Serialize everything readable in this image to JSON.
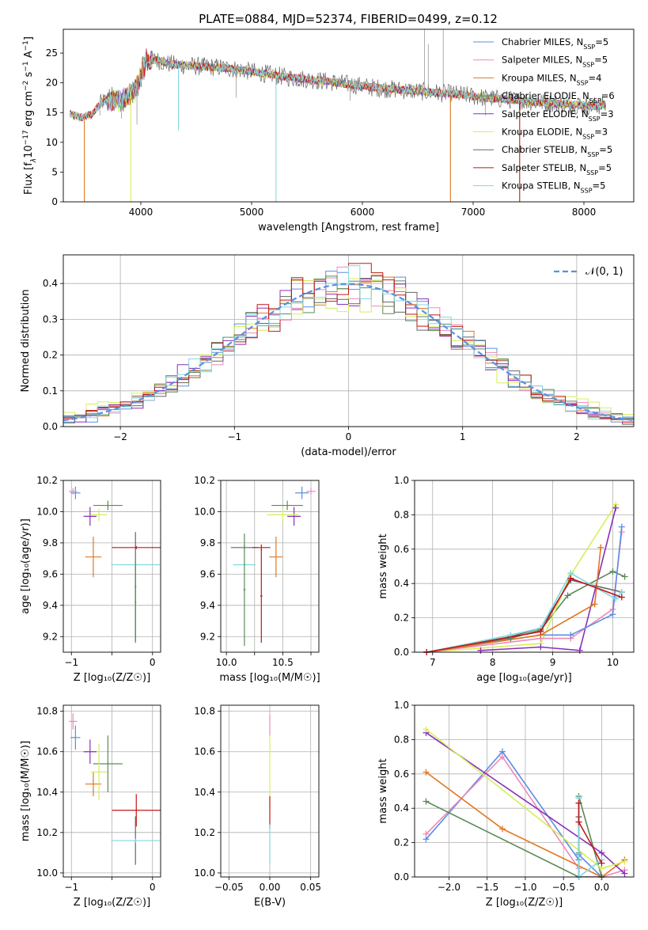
{
  "figure": {
    "title": "PLATE=0884, MJD=52374, FIBERID=0499, z=0.12"
  },
  "colors": {
    "chabrier_miles": "#5b8fe0",
    "salpeter_miles": "#ee88bb",
    "kroupa_miles": "#e07820",
    "chabrier_elodie": "#5a8a5a",
    "salpeter_elodie": "#8b2fb8",
    "kroupa_elodie": "#d4ef5a",
    "chabrier_stelib": "#666666",
    "salpeter_stelib": "#c01818",
    "kroupa_stelib": "#80d8e0"
  },
  "chart_data": [
    {
      "id": "spectrum",
      "type": "line",
      "title": "PLATE=0884, MJD=52374, FIBERID=0499, z=0.12",
      "xlabel": "wavelength [Angstrom, rest frame]",
      "ylabel_parts": [
        "Flux [f",
        "λ",
        "10",
        "−17",
        " erg cm",
        "−2",
        " s",
        "−1",
        " A",
        "−1",
        "]"
      ],
      "xlim": [
        3300,
        8450
      ],
      "ylim": [
        0,
        29
      ],
      "xticks": [
        4000,
        5000,
        6000,
        7000,
        8000
      ],
      "yticks": [
        0,
        5,
        10,
        15,
        20,
        25
      ],
      "grid": false,
      "legend_position": "top-right",
      "legend": [
        {
          "base": "Chabrier MILES, N",
          "sub": "SSP",
          "tail": "=5",
          "color": "#5b8fe0"
        },
        {
          "base": "Salpeter MILES, N",
          "sub": "SSP",
          "tail": "=5",
          "color": "#ee88bb"
        },
        {
          "base": "Kroupa MILES, N",
          "sub": "SSP",
          "tail": "=4",
          "color": "#e07820"
        },
        {
          "base": "Chabrier ELODIE, N",
          "sub": "SSP",
          "tail": "=6",
          "color": "#5a8a5a"
        },
        {
          "base": "Salpeter ELODIE, N",
          "sub": "SSP",
          "tail": "=3",
          "color": "#8b2fb8"
        },
        {
          "base": "Kroupa ELODIE, N",
          "sub": "SSP",
          "tail": "=3",
          "color": "#d4ef5a"
        },
        {
          "base": "Chabrier STELIB, N",
          "sub": "SSP",
          "tail": "=5",
          "color": "#666666"
        },
        {
          "base": "Salpeter STELIB, N",
          "sub": "SSP",
          "tail": "=5",
          "color": "#c01818"
        },
        {
          "base": "Kroupa STELIB, N",
          "sub": "SSP",
          "tail": "=5",
          "color": "#80d8e0"
        }
      ],
      "continuum": {
        "x": [
          3350,
          3450,
          3550,
          3650,
          3750,
          3850,
          3950,
          4050,
          4150,
          4250,
          4350,
          4500,
          4700,
          4900,
          5100,
          5300,
          5500,
          5700,
          5900,
          6100,
          6300,
          6500,
          6700,
          6900,
          7100,
          7300,
          7500,
          7700,
          7900,
          8100,
          8200
        ],
        "y": [
          14.8,
          14.2,
          14.6,
          16.8,
          17.2,
          17.5,
          19.0,
          24.0,
          23.8,
          23.2,
          23.0,
          22.8,
          22.6,
          22.2,
          21.6,
          21.0,
          20.6,
          20.2,
          19.7,
          19.2,
          18.9,
          18.6,
          18.3,
          18.0,
          17.5,
          17.2,
          16.9,
          16.6,
          16.3,
          16.1,
          16.3
        ]
      },
      "dips": [
        {
          "x": 3490,
          "y": 0,
          "color": "#e07820"
        },
        {
          "x": 3910,
          "y": 0,
          "color": "#d4ef5a"
        },
        {
          "x": 4340,
          "y": 12,
          "color": "#80d8e0"
        },
        {
          "x": 5220,
          "y": 0,
          "color": "#80d8e0"
        },
        {
          "x": 6795,
          "y": 0,
          "color": "#e07820"
        },
        {
          "x": 7420,
          "y": 0,
          "color": "#c01818"
        }
      ],
      "spikes": [
        {
          "x": 3630,
          "y": 14.5
        },
        {
          "x": 3825,
          "y": 14.0
        },
        {
          "x": 3965,
          "y": 13.0
        },
        {
          "x": 4860,
          "y": 17.5
        },
        {
          "x": 5890,
          "y": 17.0
        },
        {
          "x": 6560,
          "y": 29.0
        },
        {
          "x": 6595,
          "y": 26.5
        },
        {
          "x": 6730,
          "y": 29.0
        },
        {
          "x": 7110,
          "y": 14.5
        }
      ]
    },
    {
      "id": "residuals",
      "type": "histogram",
      "xlabel": "(data-model)/error",
      "ylabel": "Normed distribution",
      "xlim": [
        -2.5,
        2.5
      ],
      "ylim": [
        0,
        0.48
      ],
      "xticks": [
        -2,
        -1,
        0,
        1,
        2
      ],
      "yticks": [
        0.0,
        0.1,
        0.2,
        0.3,
        0.4
      ],
      "grid": true,
      "legend_position": "top-right",
      "legend": [
        {
          "label": "𝒩(0, 1)",
          "color": "#5b8fe0"
        }
      ],
      "bin_width": 0.1
    },
    {
      "id": "age-vs-metallicity",
      "type": "errorbar",
      "xlabel": "Z [log₁₀(Z/Z☉)]",
      "ylabel": "age  [log₁₀(age/yr)]",
      "xlim": [
        -1.1,
        0.1
      ],
      "ylim": [
        9.1,
        10.2
      ],
      "xticks": [
        -1,
        -0.5,
        0
      ],
      "xticklabels": [
        "−1",
        "",
        "0"
      ],
      "yticks": [
        9.2,
        9.4,
        9.6,
        9.8,
        10.0,
        10.2
      ],
      "grid": true,
      "points": [
        {
          "x": -0.95,
          "xerr": 0.06,
          "y": 10.12,
          "yerr": 0.04,
          "color": "#5b8fe0"
        },
        {
          "x": -0.98,
          "xerr": 0.05,
          "y": 10.13,
          "yerr": 0.02,
          "color": "#ee88bb"
        },
        {
          "x": -0.73,
          "xerr": 0.1,
          "y": 9.71,
          "yerr": 0.13,
          "color": "#e07820"
        },
        {
          "x": -0.55,
          "xerr": 0.18,
          "y": 10.04,
          "yerr": 0.03,
          "color": "#5a8a5a"
        },
        {
          "x": -0.77,
          "xerr": 0.08,
          "y": 9.97,
          "yerr": 0.06,
          "color": "#8b2fb8"
        },
        {
          "x": -0.66,
          "xerr": 0.1,
          "y": 9.98,
          "yerr": 0.04,
          "color": "#d4ef5a"
        },
        {
          "x": -0.21,
          "xerr": 0.01,
          "y": 9.52,
          "yerr": 0.35,
          "color": "#666666"
        },
        {
          "x": -0.2,
          "xerr": 0.3,
          "y": 9.77,
          "yerr": 0.01,
          "color": "#c01818"
        },
        {
          "x": -0.21,
          "xerr": 0.3,
          "y": 9.66,
          "yerr": 0.01,
          "color": "#80d8e0"
        },
        {
          "x": -0.21,
          "xerr": 0.01,
          "y": 9.42,
          "yerr": 0.26,
          "color": "#5a8a5a"
        }
      ]
    },
    {
      "id": "age-vs-mass",
      "type": "errorbar",
      "xlabel": "mass [log₁₀(M/M☉)]",
      "ylabel": "",
      "xlim": [
        9.95,
        10.82
      ],
      "ylim": [
        9.1,
        10.2
      ],
      "xticks": [
        10.0,
        10.25,
        10.5,
        10.75
      ],
      "xticklabels": [
        "10.0",
        "",
        "10.5",
        ""
      ],
      "yticks": [
        9.2,
        9.4,
        9.6,
        9.8,
        10.0,
        10.2
      ],
      "grid": true,
      "points": [
        {
          "x": 10.67,
          "xerr": 0.06,
          "y": 10.12,
          "yerr": 0.04,
          "color": "#5b8fe0"
        },
        {
          "x": 10.75,
          "xerr": 0.04,
          "y": 10.13,
          "yerr": 0.02,
          "color": "#ee88bb"
        },
        {
          "x": 10.44,
          "xerr": 0.06,
          "y": 9.71,
          "yerr": 0.13,
          "color": "#e07820"
        },
        {
          "x": 10.54,
          "xerr": 0.14,
          "y": 10.04,
          "yerr": 0.03,
          "color": "#5a8a5a"
        },
        {
          "x": 10.6,
          "xerr": 0.06,
          "y": 9.97,
          "yerr": 0.06,
          "color": "#8b2fb8"
        },
        {
          "x": 10.5,
          "xerr": 0.14,
          "y": 9.98,
          "yerr": 0.04,
          "color": "#d4ef5a"
        },
        {
          "x": 10.16,
          "xerr": 0.12,
          "y": 9.77,
          "yerr": 0.02,
          "color": "#666666"
        },
        {
          "x": 10.31,
          "xerr": 0.08,
          "y": 9.77,
          "yerr": 0.02,
          "color": "#c01818"
        },
        {
          "x": 10.31,
          "xerr": 0.01,
          "y": 9.46,
          "yerr": 0.3,
          "color": "#c01818"
        },
        {
          "x": 10.16,
          "xerr": 0.1,
          "y": 9.66,
          "yerr": 0.01,
          "color": "#80d8e0"
        },
        {
          "x": 10.16,
          "xerr": 0.01,
          "y": 9.5,
          "yerr": 0.36,
          "color": "#5a8a5a"
        }
      ]
    },
    {
      "id": "weight-vs-age",
      "type": "line",
      "xlabel": "age  [log₁₀(age/yr)]",
      "ylabel": "mass weight",
      "xlim": [
        6.7,
        10.35
      ],
      "ylim": [
        0,
        1
      ],
      "xticks": [
        7,
        8,
        9,
        10
      ],
      "yticks": [
        0.0,
        0.2,
        0.4,
        0.6,
        0.8,
        1.0
      ],
      "grid": true,
      "series": [
        {
          "color": "#5a8a5a",
          "x": [
            6.9,
            8.3,
            8.8,
            9.25,
            10.0,
            10.2
          ],
          "y": [
            0.0,
            0.08,
            0.13,
            0.33,
            0.47,
            0.44
          ]
        },
        {
          "color": "#d4ef5a",
          "x": [
            6.9,
            8.8,
            9.3,
            10.05
          ],
          "y": [
            0.0,
            0.05,
            0.45,
            0.86
          ]
        },
        {
          "color": "#8b2fb8",
          "x": [
            7.8,
            8.8,
            9.45,
            10.05
          ],
          "y": [
            0.01,
            0.03,
            0.01,
            0.84
          ]
        },
        {
          "color": "#ee88bb",
          "x": [
            6.9,
            8.8,
            9.3,
            10.0,
            10.15
          ],
          "y": [
            0.0,
            0.08,
            0.08,
            0.25,
            0.7
          ]
        },
        {
          "color": "#5b8fe0",
          "x": [
            6.9,
            8.8,
            9.3,
            10.0,
            10.15
          ],
          "y": [
            0.0,
            0.1,
            0.1,
            0.22,
            0.73
          ]
        },
        {
          "color": "#e07820",
          "x": [
            6.9,
            8.8,
            9.7,
            9.8
          ],
          "y": [
            0.0,
            0.1,
            0.28,
            0.61
          ]
        },
        {
          "color": "#666666",
          "x": [
            6.9,
            8.3,
            8.8,
            9.3,
            10.15
          ],
          "y": [
            0.0,
            0.09,
            0.14,
            0.42,
            0.35
          ]
        },
        {
          "color": "#80d8e0",
          "x": [
            6.9,
            8.3,
            8.8,
            9.3,
            10.05,
            10.15
          ],
          "y": [
            0.0,
            0.1,
            0.14,
            0.46,
            0.31,
            0.35
          ]
        },
        {
          "color": "#c01818",
          "x": [
            6.9,
            8.8,
            9.3,
            10.15
          ],
          "y": [
            0.0,
            0.12,
            0.43,
            0.32
          ]
        }
      ]
    },
    {
      "id": "mass-vs-metallicity",
      "type": "errorbar",
      "xlabel": "Z [log₁₀(Z/Z☉)]",
      "ylabel": "mass [log₁₀(M/M☉)]",
      "xlim": [
        -1.1,
        0.1
      ],
      "ylim": [
        9.98,
        10.83
      ],
      "xticks": [
        -1,
        -0.5,
        0
      ],
      "xticklabels": [
        "−1",
        "",
        "0"
      ],
      "yticks": [
        10.0,
        10.2,
        10.4,
        10.6,
        10.8
      ],
      "grid": true,
      "points": [
        {
          "x": -0.95,
          "xerr": 0.06,
          "y": 10.67,
          "yerr": 0.06,
          "color": "#5b8fe0"
        },
        {
          "x": -0.98,
          "xerr": 0.05,
          "y": 10.75,
          "yerr": 0.04,
          "color": "#ee88bb"
        },
        {
          "x": -0.73,
          "xerr": 0.1,
          "y": 10.44,
          "yerr": 0.06,
          "color": "#e07820"
        },
        {
          "x": -0.55,
          "xerr": 0.18,
          "y": 10.54,
          "yerr": 0.14,
          "color": "#5a8a5a"
        },
        {
          "x": -0.77,
          "xerr": 0.08,
          "y": 10.6,
          "yerr": 0.06,
          "color": "#8b2fb8"
        },
        {
          "x": -0.66,
          "xerr": 0.1,
          "y": 10.5,
          "yerr": 0.14,
          "color": "#d4ef5a"
        },
        {
          "x": -0.21,
          "xerr": 0.01,
          "y": 10.16,
          "yerr": 0.12,
          "color": "#666666"
        },
        {
          "x": -0.2,
          "xerr": 0.3,
          "y": 10.31,
          "yerr": 0.08,
          "color": "#c01818"
        },
        {
          "x": -0.21,
          "xerr": 0.3,
          "y": 10.16,
          "yerr": 0.01,
          "color": "#80d8e0"
        }
      ]
    },
    {
      "id": "mass-vs-reddening",
      "type": "errorbar",
      "xlabel": "E(B-V)",
      "ylabel": "",
      "xlim": [
        -0.06,
        0.06
      ],
      "ylim": [
        9.98,
        10.83
      ],
      "xticks": [
        -0.05,
        0.0,
        0.05
      ],
      "xticklabels": [
        "−0.05",
        "0.00",
        "0.05"
      ],
      "yticks": [
        10.0,
        10.2,
        10.4,
        10.6,
        10.8
      ],
      "grid": true,
      "points": [
        {
          "x": 0.0,
          "xerr": 0.0,
          "y": 10.73,
          "yerr": 0.05,
          "color": "#ee88bb"
        },
        {
          "x": 0.0,
          "xerr": 0.0,
          "y": 10.5,
          "yerr": 0.18,
          "color": "#d4ef5a"
        },
        {
          "x": 0.0,
          "xerr": 0.0,
          "y": 10.3,
          "yerr": 0.08,
          "color": "#c01818"
        },
        {
          "x": 0.0,
          "xerr": 0.0,
          "y": 10.14,
          "yerr": 0.1,
          "color": "#80d8e0"
        }
      ]
    },
    {
      "id": "weight-vs-metallicity",
      "type": "line",
      "xlabel": "Z [log₁₀(Z/Z☉)]",
      "ylabel": "mass weight",
      "xlim": [
        -2.45,
        0.42
      ],
      "ylim": [
        0,
        1
      ],
      "xticks": [
        -2.0,
        -1.5,
        -1.0,
        -0.5,
        0.0
      ],
      "xticklabels": [
        "−2.0",
        "−1.5",
        "−1.0",
        "−0.5",
        "0.0"
      ],
      "yticks": [
        0.0,
        0.2,
        0.4,
        0.6,
        0.8,
        1.0
      ],
      "grid": true,
      "series": [
        {
          "color": "#5b8fe0",
          "x": [
            -2.3,
            -1.3,
            -0.3,
            -0.3,
            0.0
          ],
          "y": [
            0.22,
            0.73,
            0.1,
            0.13,
            0.0
          ]
        },
        {
          "color": "#ee88bb",
          "x": [
            -2.3,
            -1.3,
            -0.3,
            -0.3,
            0.0,
            0.3
          ],
          "y": [
            0.25,
            0.7,
            0.05,
            0.0,
            0.0,
            0.04
          ]
        },
        {
          "color": "#e07820",
          "x": [
            -2.3,
            -1.3,
            0.0,
            0.3
          ],
          "y": [
            0.61,
            0.28,
            0.0,
            0.1
          ]
        },
        {
          "color": "#5a8a5a",
          "x": [
            -2.3,
            -0.3,
            -0.3,
            -0.3,
            0.0
          ],
          "y": [
            0.44,
            0.0,
            0.14,
            0.47,
            0.0
          ]
        },
        {
          "color": "#8b2fb8",
          "x": [
            -2.3,
            0.0,
            0.3
          ],
          "y": [
            0.84,
            0.14,
            0.02
          ]
        },
        {
          "color": "#d4ef5a",
          "x": [
            -2.3,
            0.0,
            0.3
          ],
          "y": [
            0.86,
            0.05,
            0.09
          ]
        },
        {
          "color": "#666666",
          "x": [
            -0.3,
            -0.3,
            0.0
          ],
          "y": [
            0.35,
            0.0,
            0.0
          ]
        },
        {
          "color": "#80d8e0",
          "x": [
            -0.3,
            -0.3,
            0.0
          ],
          "y": [
            0.46,
            0.0,
            0.1
          ]
        },
        {
          "color": "#c01818",
          "x": [
            -0.3,
            -0.3,
            0.0
          ],
          "y": [
            0.43,
            0.32,
            0.08
          ]
        }
      ]
    }
  ]
}
